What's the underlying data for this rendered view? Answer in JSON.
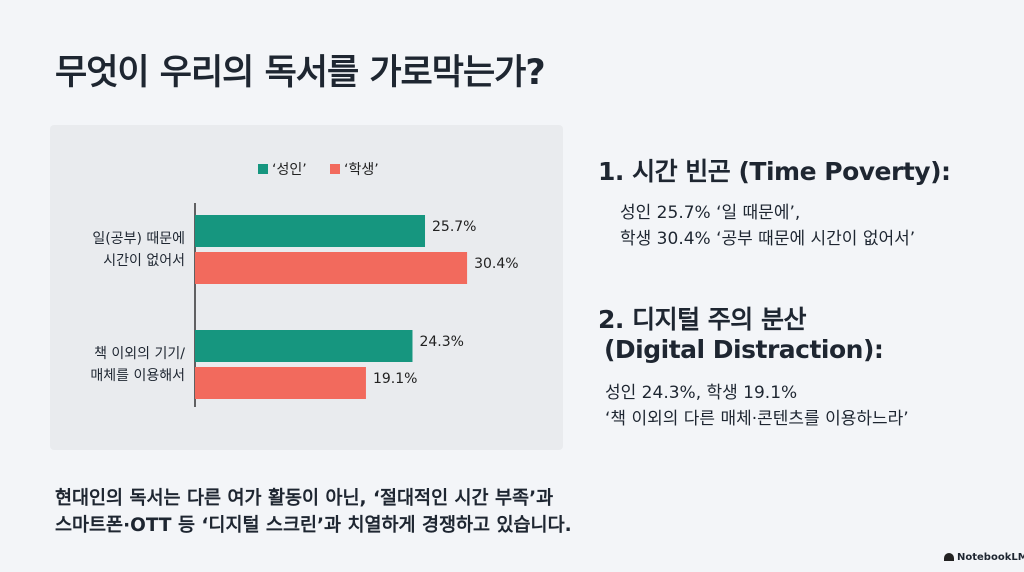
{
  "title": "무엇이 우리의 독서를 가로막는가?",
  "chart_data": {
    "type": "bar",
    "orientation": "horizontal",
    "categories": [
      "일(공부) 때문에\n시간이 없어서",
      "책 이외의 기기/\n매체를 이용해서"
    ],
    "series": [
      {
        "name": "‘성인’",
        "color": "#16967f",
        "values": [
          25.7,
          24.3
        ],
        "value_labels": [
          "25.7%",
          "24.3%"
        ]
      },
      {
        "name": "‘학생’",
        "color": "#f26a5d",
        "values": [
          30.4,
          19.1
        ],
        "value_labels": [
          "30.4%",
          "19.1%"
        ]
      }
    ],
    "legend": "top"
  },
  "points": [
    {
      "heading": [
        "1. 시간 빈곤 (Time Poverty):"
      ],
      "lines": [
        "성인 25.7% ‘일 때문에’,",
        "학생 30.4% ‘공부 때문에 시간이 없어서’"
      ]
    },
    {
      "heading": [
        "2. 디지털 주의 분산",
        "(Digital Distraction):"
      ],
      "lines": [
        "성인 24.3%, 학생 19.1%",
        "‘책 이외의 다른 매체·콘텐츠를 이용하느라’"
      ]
    }
  ],
  "summary": [
    "현대인의 독서는 다른 여가 활동이 아닌, ‘절대적인 시간 부족’과",
    "스마트폰·OTT 등 ‘디지털 스크린’과 치열하게 경쟁하고 있습니다."
  ],
  "footer": "NotebookLM"
}
